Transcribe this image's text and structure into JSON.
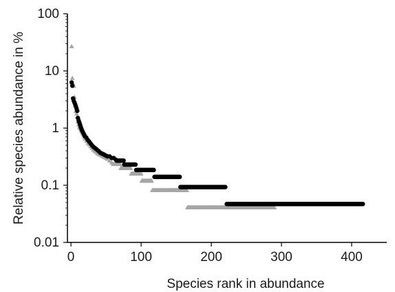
{
  "chart_data": {
    "type": "scatter",
    "title": "",
    "xlabel": "Species rank in abundance",
    "ylabel": "Relative species abundance in %",
    "x_scale": "linear",
    "y_scale": "log",
    "xlim": [
      -5,
      450
    ],
    "ylim": [
      0.01,
      100
    ],
    "x_ticks": [
      0,
      100,
      200,
      300,
      400
    ],
    "x_tick_labels": [
      "0",
      "100",
      "200",
      "300",
      "400"
    ],
    "y_ticks": [
      0.01,
      0.1,
      1,
      10,
      100
    ],
    "y_tick_labels": [
      "0.01",
      "0.1",
      "1",
      "10",
      "100"
    ],
    "grid": false,
    "legend": "none",
    "marker_colors": [
      "#000000",
      "#a6a6a6"
    ],
    "series": [
      {
        "marker": "circle",
        "color": "#000000",
        "x": [
          1,
          2,
          3,
          4,
          5,
          6,
          7,
          8,
          9,
          10,
          11,
          12,
          13,
          14,
          15,
          16,
          17,
          18,
          19,
          20,
          22,
          24,
          26,
          28,
          30,
          32,
          34,
          36,
          38,
          40,
          42,
          44,
          46,
          48,
          50,
          52,
          55,
          58,
          61,
          64
        ],
        "y": [
          6.3,
          5.5,
          3.3,
          3.0,
          2.8,
          2.6,
          2.4,
          2.2,
          2.0,
          1.5,
          1.35,
          1.25,
          1.15,
          1.05,
          0.97,
          0.9,
          0.85,
          0.8,
          0.76,
          0.72,
          0.68,
          0.62,
          0.58,
          0.54,
          0.5,
          0.47,
          0.45,
          0.43,
          0.41,
          0.39,
          0.37,
          0.36,
          0.35,
          0.34,
          0.33,
          0.32,
          0.32,
          0.3,
          0.3,
          0.28
        ],
        "plateaus": [
          {
            "y": 0.27,
            "x_from": 65,
            "x_to": 75
          },
          {
            "y": 0.23,
            "x_from": 76,
            "x_to": 92
          },
          {
            "y": 0.185,
            "x_from": 93,
            "x_to": 118
          },
          {
            "y": 0.14,
            "x_from": 119,
            "x_to": 155
          },
          {
            "y": 0.093,
            "x_from": 156,
            "x_to": 220
          },
          {
            "y": 0.047,
            "x_from": 222,
            "x_to": 416
          }
        ]
      },
      {
        "marker": "triangle",
        "color": "#a6a6a6",
        "x": [
          1,
          2,
          3,
          4,
          5,
          6,
          7,
          8,
          9,
          10,
          11,
          12,
          13,
          14,
          15,
          16,
          17,
          18,
          19,
          20,
          22,
          24,
          26,
          28,
          30,
          32,
          34,
          36,
          38,
          40,
          42,
          44,
          46,
          48,
          50,
          52,
          55,
          58
        ],
        "y": [
          27,
          7.5,
          6.0,
          5.5,
          3.5,
          2.5,
          2.0,
          1.8,
          1.6,
          1.3,
          1.15,
          1.05,
          1.0,
          0.95,
          0.9,
          0.85,
          0.8,
          0.75,
          0.7,
          0.65,
          0.6,
          0.55,
          0.52,
          0.48,
          0.45,
          0.42,
          0.4,
          0.38,
          0.36,
          0.35,
          0.34,
          0.33,
          0.32,
          0.31,
          0.3,
          0.29,
          0.27,
          0.25
        ],
        "plateaus": [
          {
            "y": 0.235,
            "x_from": 60,
            "x_to": 70
          },
          {
            "y": 0.2,
            "x_from": 71,
            "x_to": 85
          },
          {
            "y": 0.16,
            "x_from": 86,
            "x_to": 100
          },
          {
            "y": 0.12,
            "x_from": 101,
            "x_to": 115
          },
          {
            "y": 0.082,
            "x_from": 116,
            "x_to": 165
          },
          {
            "y": 0.041,
            "x_from": 166,
            "x_to": 290
          }
        ]
      }
    ]
  }
}
